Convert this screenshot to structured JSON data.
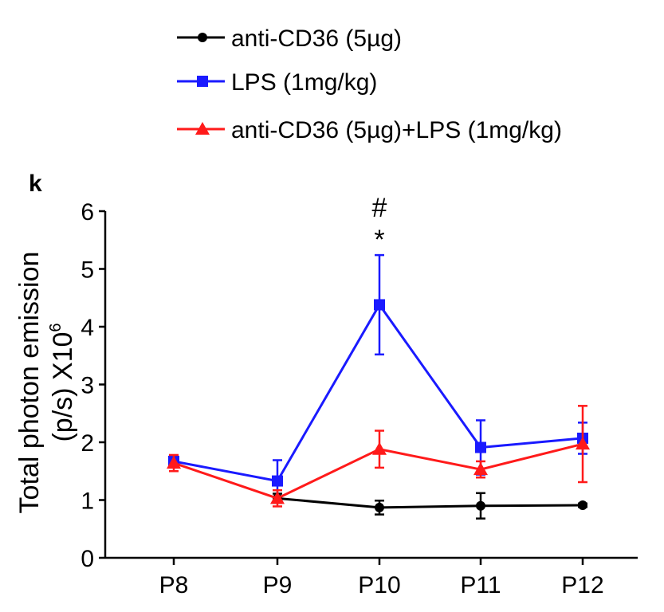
{
  "panel_label": "k",
  "chart_data": {
    "type": "line",
    "categories": [
      "P8",
      "P9",
      "P10",
      "P11",
      "P12"
    ],
    "ylabel_line1": "Total photon emission",
    "ylabel_line2": "(p/s) X10",
    "ylabel_exponent": "6",
    "ylim": [
      0,
      6
    ],
    "yticks": [
      "0",
      "1",
      "2",
      "3",
      "4",
      "5",
      "6"
    ],
    "legend_position": "top",
    "grid": false,
    "series": [
      {
        "name": "anti-CD36 (5µg)",
        "color": "#000000",
        "marker": "circle",
        "values": [
          null,
          1.03,
          0.87,
          0.9,
          0.91
        ],
        "errors": [
          null,
          0.08,
          0.12,
          0.22,
          0.03
        ]
      },
      {
        "name": "LPS (1mg/kg)",
        "color": "#1a1aff",
        "marker": "square",
        "values": [
          1.67,
          1.33,
          4.38,
          1.91,
          2.07
        ],
        "errors": [
          0.1,
          0.36,
          0.86,
          0.47,
          0.27
        ]
      },
      {
        "name": "anti-CD36 (5µg)+LPS (1mg/kg)",
        "color": "#ff1a1a",
        "marker": "triangle",
        "values": [
          1.64,
          1.03,
          1.88,
          1.53,
          1.97
        ],
        "errors": [
          0.14,
          0.14,
          0.32,
          0.14,
          0.66
        ]
      }
    ],
    "annotations": [
      {
        "category": "P10",
        "lines": [
          "#",
          "*"
        ]
      }
    ]
  }
}
